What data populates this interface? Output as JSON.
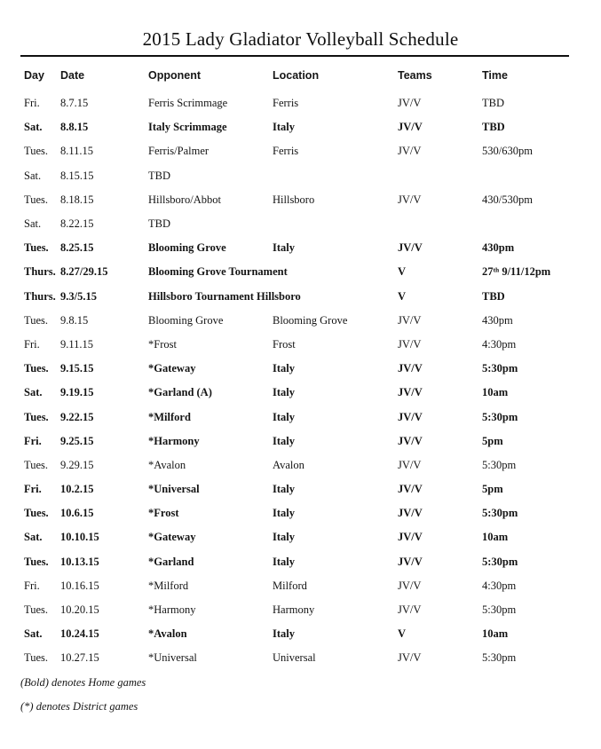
{
  "document": {
    "title": "2015 Lady Gladiator Volleyball Schedule"
  },
  "table": {
    "headers": {
      "day": "Day",
      "date": "Date",
      "opponent": "Opponent",
      "location": "Location",
      "teams": "Teams",
      "time": "Time"
    },
    "rows": [
      {
        "day": "Fri.",
        "date": "8.7.15",
        "opponent": "Ferris Scrimmage",
        "location": "Ferris",
        "teams": "JV/V",
        "time": "TBD",
        "bold": false
      },
      {
        "day": "Sat.",
        "date": "8.8.15",
        "opponent": "Italy Scrimmage",
        "location": "Italy",
        "teams": "JV/V",
        "time": "TBD",
        "bold": true
      },
      {
        "day": "Tues.",
        "date": "8.11.15",
        "opponent": "Ferris/Palmer",
        "location": "Ferris",
        "teams": "JV/V",
        "time": "530/630pm",
        "bold": false
      },
      {
        "day": "Sat.",
        "date": "8.15.15",
        "opponent": "TBD",
        "location": "",
        "teams": "",
        "time": "",
        "bold": false
      },
      {
        "day": "Tues.",
        "date": "8.18.15",
        "opponent": "Hillsboro/Abbot",
        "location": "Hillsboro",
        "teams": "JV/V",
        "time": "430/530pm",
        "bold": false
      },
      {
        "day": "Sat.",
        "date": "8.22.15",
        "opponent": "TBD",
        "location": "",
        "teams": "",
        "time": "",
        "bold": false
      },
      {
        "day": "Tues.",
        "date": "8.25.15",
        "opponent": "Blooming Grove",
        "location": "Italy",
        "teams": "JV/V",
        "time": "430pm",
        "bold": true
      },
      {
        "day": "Thurs.",
        "date": "8.27/29.15",
        "opponent": "Blooming Grove Tournament",
        "location": "",
        "teams": "V",
        "time": "27ᵗʰ 9/11/12pm",
        "bold": true
      },
      {
        "day": "Thurs.",
        "date": "9.3/5.15",
        "opponent": "Hillsboro Tournament Hillsboro",
        "location": "",
        "teams": "V",
        "time": "TBD",
        "bold": true
      },
      {
        "day": "Tues.",
        "date": "9.8.15",
        "opponent": "Blooming Grove",
        "location": "Blooming Grove",
        "teams": "JV/V",
        "time": "430pm",
        "bold": false
      },
      {
        "day": "Fri.",
        "date": "9.11.15",
        "opponent": "*Frost",
        "location": "Frost",
        "teams": "JV/V",
        "time": "4:30pm",
        "bold": false
      },
      {
        "day": "Tues.",
        "date": "9.15.15",
        "opponent": "*Gateway",
        "location": "Italy",
        "teams": "JV/V",
        "time": "5:30pm",
        "bold": true
      },
      {
        "day": "Sat.",
        "date": "9.19.15",
        "opponent": "*Garland (A)",
        "location": "Italy",
        "teams": "JV/V",
        "time": "10am",
        "bold": true
      },
      {
        "day": "Tues.",
        "date": "9.22.15",
        "opponent": "*Milford",
        "location": "Italy",
        "teams": "JV/V",
        "time": "5:30pm",
        "bold": true
      },
      {
        "day": "Fri.",
        "date": "9.25.15",
        "opponent": "*Harmony",
        "location": "Italy",
        "teams": "JV/V",
        "time": "5pm",
        "bold": true
      },
      {
        "day": "Tues.",
        "date": "9.29.15",
        "opponent": "*Avalon",
        "location": "Avalon",
        "teams": "JV/V",
        "time": "5:30pm",
        "bold": false
      },
      {
        "day": "Fri.",
        "date": "10.2.15",
        "opponent": "*Universal",
        "location": "Italy",
        "teams": "JV/V",
        "time": "5pm",
        "bold": true
      },
      {
        "day": "Tues.",
        "date": "10.6.15",
        "opponent": "*Frost",
        "location": "Italy",
        "teams": "JV/V",
        "time": "5:30pm",
        "bold": true
      },
      {
        "day": "Sat.",
        "date": "10.10.15",
        "opponent": "*Gateway",
        "location": "Italy",
        "teams": "JV/V",
        "time": "10am",
        "bold": true
      },
      {
        "day": "Tues.",
        "date": "10.13.15",
        "opponent": "*Garland",
        "location": "Italy",
        "teams": "JV/V",
        "time": "5:30pm",
        "bold": true
      },
      {
        "day": "Fri.",
        "date": "10.16.15",
        "opponent": "*Milford",
        "location": "Milford",
        "teams": "JV/V",
        "time": "4:30pm",
        "bold": false
      },
      {
        "day": "Tues.",
        "date": "10.20.15",
        "opponent": "*Harmony",
        "location": "Harmony",
        "teams": "JV/V",
        "time": "5:30pm",
        "bold": false
      },
      {
        "day": "Sat.",
        "date": "10.24.15",
        "opponent": "*Avalon",
        "location": "Italy",
        "teams": "V",
        "time": "10am",
        "bold": true
      },
      {
        "day": "Tues.",
        "date": "10.27.15",
        "opponent": "*Universal",
        "location": "Universal",
        "teams": "JV/V",
        "time": "5:30pm",
        "bold": false
      }
    ]
  },
  "footnotes": {
    "home": "(Bold) denotes Home games",
    "district": "(*) denotes District games"
  }
}
